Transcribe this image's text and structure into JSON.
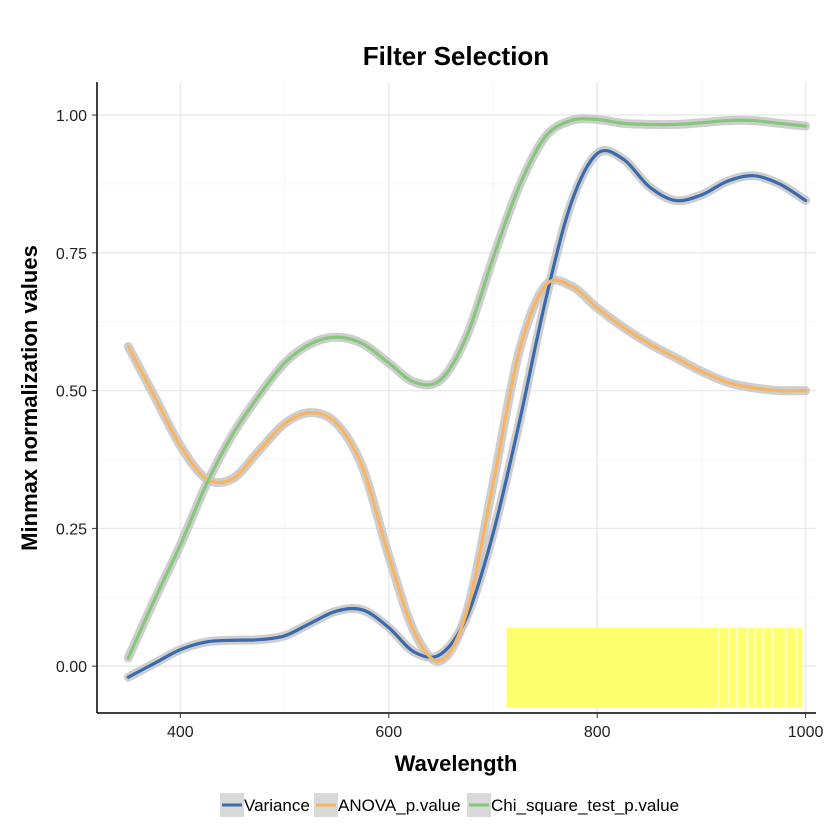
{
  "chart_data": {
    "type": "line",
    "title": "Filter Selection",
    "xlabel": "Wavelength",
    "ylabel": "Minmax normalization values",
    "xlim": [
      320,
      1010
    ],
    "ylim": [
      -0.085,
      1.06
    ],
    "x_ticks": [
      400,
      600,
      800,
      1000
    ],
    "y_ticks": [
      0.0,
      0.25,
      0.5,
      0.75,
      1.0
    ],
    "x_tick_labels": [
      "400",
      "600",
      "800",
      "1000"
    ],
    "y_tick_labels": [
      "0.00",
      "0.25",
      "0.50",
      "0.75",
      "1.00"
    ],
    "grid": true,
    "legend_position": "bottom",
    "series": [
      {
        "name": "Variance",
        "color": "#3b6aab",
        "x": [
          350,
          375,
          400,
          425,
          450,
          475,
          500,
          525,
          550,
          575,
          600,
          625,
          650,
          675,
          700,
          725,
          750,
          775,
          800,
          825,
          850,
          875,
          900,
          925,
          950,
          975,
          1000
        ],
        "y": [
          -0.02,
          0.005,
          0.03,
          0.044,
          0.047,
          0.048,
          0.055,
          0.078,
          0.1,
          0.102,
          0.07,
          0.025,
          0.022,
          0.09,
          0.24,
          0.44,
          0.66,
          0.84,
          0.93,
          0.92,
          0.87,
          0.845,
          0.855,
          0.88,
          0.89,
          0.875,
          0.845
        ]
      },
      {
        "name": "ANOVA_p.value",
        "color": "#f7b563",
        "x": [
          350,
          375,
          400,
          425,
          450,
          475,
          500,
          525,
          550,
          575,
          600,
          625,
          650,
          675,
          700,
          725,
          750,
          775,
          800,
          825,
          850,
          875,
          900,
          925,
          950,
          975,
          1000
        ],
        "y": [
          0.58,
          0.49,
          0.4,
          0.34,
          0.34,
          0.39,
          0.44,
          0.46,
          0.44,
          0.36,
          0.2,
          0.06,
          0.01,
          0.1,
          0.33,
          0.57,
          0.69,
          0.69,
          0.65,
          0.615,
          0.585,
          0.56,
          0.535,
          0.515,
          0.505,
          0.5,
          0.5
        ]
      },
      {
        "name": "Chi_square_test_p.value",
        "color": "#86c77c",
        "x": [
          350,
          375,
          400,
          425,
          450,
          475,
          500,
          525,
          550,
          575,
          600,
          625,
          650,
          675,
          700,
          725,
          750,
          775,
          800,
          825,
          850,
          875,
          900,
          925,
          950,
          975,
          1000
        ],
        "y": [
          0.015,
          0.12,
          0.22,
          0.33,
          0.42,
          0.49,
          0.55,
          0.585,
          0.597,
          0.585,
          0.55,
          0.515,
          0.52,
          0.6,
          0.74,
          0.87,
          0.96,
          0.99,
          0.992,
          0.985,
          0.983,
          0.983,
          0.986,
          0.99,
          0.99,
          0.985,
          0.98
        ]
      }
    ],
    "highlight": {
      "color": "#ffff66",
      "x_start": 713,
      "x_end": 997,
      "y_bottom": -0.075,
      "y_top": 0.07,
      "gap_band_x": [
        915,
        925,
        933,
        943,
        950,
        958,
        967,
        980,
        990
      ]
    }
  }
}
